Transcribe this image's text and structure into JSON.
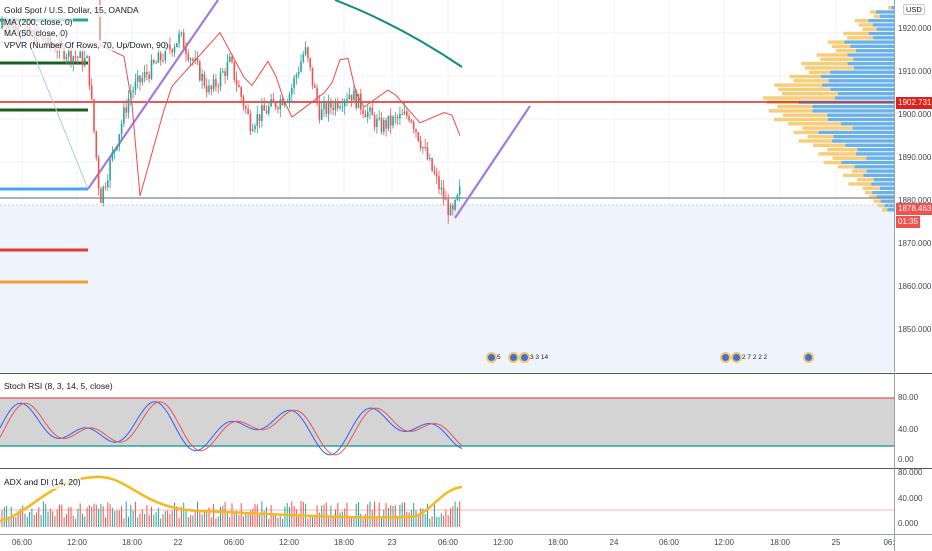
{
  "legend": {
    "title": "Gold Spot / U.S. Dollar, 15, OANDA",
    "ma200": "MA (200, close, 0)",
    "ma50": "MA (50, close, 0)",
    "vpvr": "VPVR (Number Of Rows, 70, Up/Down, 90)"
  },
  "price_axis": {
    "currency": "USD",
    "ticks": [
      "1920.000",
      "1910.000",
      "1900.000",
      "1890.000",
      "1880.000",
      "1870.000",
      "1860.000",
      "1850.000"
    ],
    "tick_values": [
      1920,
      1910,
      1900,
      1890,
      1880,
      1870,
      1860,
      1850
    ],
    "high_tag": "1902.731",
    "last_tag": "1878.463",
    "countdown": "01:35"
  },
  "rsi": {
    "label": "Stoch RSI (8, 3, 14, 5, close)",
    "ticks": [
      "80.00",
      "40.00",
      "0.00"
    ],
    "tick_values": [
      80,
      40,
      0
    ]
  },
  "adx": {
    "label": "ADX and DI (14, 20)",
    "ticks": [
      "80.000",
      "40.000",
      "0.000"
    ],
    "tick_values": [
      80,
      40,
      0
    ]
  },
  "time_axis": {
    "labels": [
      "06:00",
      "12:00",
      "18:00",
      "22",
      "06:00",
      "12:00",
      "18:00",
      "23",
      "06:00",
      "12:00",
      "18:00",
      "24",
      "06:00",
      "12:00",
      "18:00",
      "25",
      "06:"
    ]
  },
  "events": [
    {
      "numbers": "5"
    },
    {
      "numbers": "3  3 14"
    },
    {
      "numbers": "2 7  2 2 2"
    },
    {
      "numbers": ""
    }
  ],
  "colors": {
    "up": "#26a69a",
    "down": "#ef5350",
    "ma200": "#0e8e7e",
    "ma50": "#ef4b4b",
    "trend": "#a17ce0",
    "hline_red": "#e0201b",
    "vpvr_up": "#5aa8e6",
    "vpvr_down": "#f7c86a",
    "adx": "#f5b91c"
  }
}
